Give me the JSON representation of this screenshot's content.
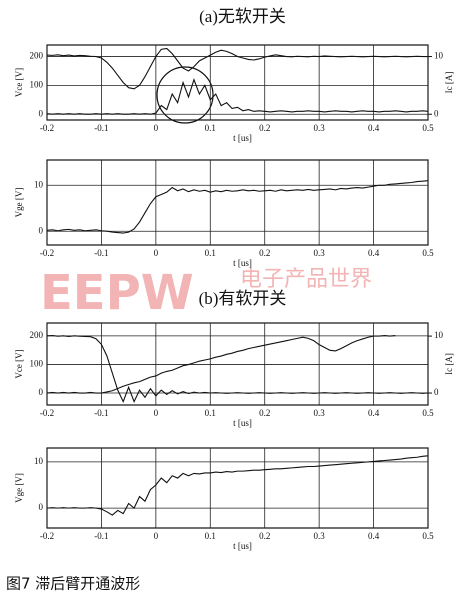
{
  "chart_data": [
    {
      "type": "line",
      "title": "(a)无软开关",
      "xlabel": "t [us]",
      "ylabel": "Vce [V]",
      "y2label": "Ic [A]",
      "grid": true,
      "x": [
        -0.2,
        -0.19,
        -0.18,
        -0.17,
        -0.16,
        -0.15,
        -0.14,
        -0.13,
        -0.12,
        -0.11,
        -0.1,
        -0.09,
        -0.08,
        -0.07,
        -0.06,
        -0.05,
        -0.04,
        -0.03,
        -0.02,
        -0.01,
        0,
        0.01,
        0.02,
        0.03,
        0.04,
        0.05,
        0.06,
        0.07,
        0.08,
        0.09,
        0.1,
        0.11,
        0.12,
        0.13,
        0.14,
        0.15,
        0.16,
        0.17,
        0.18,
        0.19,
        0.2,
        0.21,
        0.22,
        0.23,
        0.24,
        0.25,
        0.26,
        0.27,
        0.28,
        0.29,
        0.3,
        0.31,
        0.32,
        0.33,
        0.34,
        0.35,
        0.36,
        0.37,
        0.38,
        0.39,
        0.4,
        0.41,
        0.42,
        0.43,
        0.44,
        0.45,
        0.46,
        0.47,
        0.48,
        0.49,
        0.5
      ],
      "xlim": [
        -0.2,
        0.5
      ],
      "xticks": [
        -0.2,
        -0.1,
        0,
        0.1,
        0.2,
        0.3,
        0.4,
        0.5
      ],
      "ylim": [
        -20,
        240
      ],
      "yticks": [
        0,
        100,
        200
      ],
      "y2lim": [
        -1,
        12
      ],
      "y2ticks": [
        0,
        10
      ],
      "series": [
        {
          "name": "Vce",
          "color": "#111111",
          "values": [
            205,
            204,
            206,
            203,
            205,
            202,
            204,
            203,
            201,
            200,
            195,
            180,
            160,
            135,
            110,
            92,
            88,
            100,
            130,
            165,
            200,
            225,
            228,
            210,
            185,
            160,
            150,
            165,
            185,
            195,
            205,
            215,
            222,
            218,
            210,
            200,
            195,
            190,
            188,
            192,
            198,
            202,
            206,
            203,
            200,
            199,
            201,
            200,
            199,
            201,
            200,
            202,
            201,
            200,
            199,
            200,
            201,
            200,
            199,
            200,
            201,
            200,
            199,
            200,
            201,
            200,
            199,
            200,
            201,
            200,
            200
          ]
        },
        {
          "name": "Ic",
          "color": "#111111",
          "axis": "y2",
          "values": [
            0.1,
            0,
            0.1,
            0,
            0.1,
            0,
            0.1,
            0,
            0,
            0.1,
            0,
            0.1,
            0,
            0.1,
            0,
            0,
            0.1,
            0,
            0.1,
            0,
            0.2,
            1.5,
            0.8,
            3.5,
            2,
            5.5,
            3,
            6,
            3.5,
            5,
            2.5,
            3.5,
            1.5,
            2,
            1,
            1.2,
            0.6,
            0.8,
            0.5,
            0.6,
            0.5,
            0.4,
            0.5,
            0.6,
            0.5,
            0.4,
            0.5,
            0.5,
            0.6,
            0.5,
            0.5,
            0.4,
            0.5,
            0.6,
            0.5,
            0.5,
            0.4,
            0.5,
            0.6,
            0.5,
            0.5,
            0.4,
            0.5,
            0.5,
            0.6,
            0.5,
            0.4,
            0.5,
            0.5,
            0.6,
            0.5
          ]
        }
      ]
    },
    {
      "type": "line",
      "xlabel": "t [us]",
      "ylabel": "Vge [V]",
      "grid": true,
      "x": [
        -0.2,
        -0.19,
        -0.18,
        -0.17,
        -0.16,
        -0.15,
        -0.14,
        -0.13,
        -0.12,
        -0.11,
        -0.1,
        -0.09,
        -0.08,
        -0.07,
        -0.06,
        -0.05,
        -0.04,
        -0.03,
        -0.02,
        -0.01,
        0,
        0.01,
        0.02,
        0.03,
        0.04,
        0.05,
        0.06,
        0.07,
        0.08,
        0.09,
        0.1,
        0.11,
        0.12,
        0.13,
        0.14,
        0.15,
        0.16,
        0.17,
        0.18,
        0.19,
        0.2,
        0.21,
        0.22,
        0.23,
        0.24,
        0.25,
        0.26,
        0.27,
        0.28,
        0.29,
        0.3,
        0.31,
        0.32,
        0.33,
        0.34,
        0.35,
        0.36,
        0.37,
        0.38,
        0.39,
        0.4,
        0.41,
        0.42,
        0.43,
        0.44,
        0.45,
        0.46,
        0.47,
        0.48,
        0.49,
        0.5
      ],
      "xlim": [
        -0.2,
        0.5
      ],
      "xticks": [
        -0.2,
        -0.1,
        0,
        0.1,
        0.2,
        0.3,
        0.4,
        0.5
      ],
      "ylim": [
        -3,
        15.5
      ],
      "yticks": [
        0,
        10
      ],
      "series": [
        {
          "name": "Vge",
          "color": "#111111",
          "values": [
            0.2,
            0.3,
            0.1,
            0.3,
            0.4,
            0.2,
            0.3,
            0.1,
            0.2,
            0.3,
            0.1,
            0,
            -0.2,
            -0.3,
            -0.4,
            -0.2,
            0.5,
            2,
            4,
            6,
            7.5,
            8,
            8.5,
            9.5,
            8.8,
            9.2,
            8.6,
            9,
            8.7,
            8.9,
            8.5,
            8.8,
            8.6,
            8.9,
            8.7,
            8.8,
            9,
            8.8,
            8.9,
            8.7,
            8.8,
            8.9,
            8.7,
            9,
            8.8,
            8.9,
            9,
            8.9,
            9.1,
            8.9,
            9,
            9.1,
            9.2,
            9,
            9.3,
            9.2,
            9.4,
            9.5,
            9.4,
            9.6,
            9.8,
            10,
            10,
            10.2,
            10.3,
            10.4,
            10.5,
            10.6,
            10.8,
            10.9,
            11
          ]
        }
      ]
    },
    {
      "type": "line",
      "title": "(b)有软开关",
      "xlabel": "t [us]",
      "ylabel": "Vce [V]",
      "y2label": "Ic [A]",
      "grid": true,
      "x": [
        -0.2,
        -0.19,
        -0.18,
        -0.17,
        -0.16,
        -0.15,
        -0.14,
        -0.13,
        -0.12,
        -0.11,
        -0.1,
        -0.09,
        -0.08,
        -0.07,
        -0.06,
        -0.05,
        -0.04,
        -0.03,
        -0.02,
        -0.01,
        0,
        0.01,
        0.02,
        0.03,
        0.04,
        0.05,
        0.06,
        0.07,
        0.08,
        0.09,
        0.1,
        0.11,
        0.12,
        0.13,
        0.14,
        0.15,
        0.16,
        0.17,
        0.18,
        0.19,
        0.2,
        0.21,
        0.22,
        0.23,
        0.24,
        0.25,
        0.26,
        0.27,
        0.28,
        0.29,
        0.3,
        0.31,
        0.32,
        0.33,
        0.34,
        0.35,
        0.36,
        0.37,
        0.38,
        0.39,
        0.4,
        0.41,
        0.42,
        0.43,
        0.44,
        0.45,
        0.46,
        0.47,
        0.48,
        0.49,
        0.5
      ],
      "xlim": [
        -0.2,
        0.5
      ],
      "xticks": [
        -0.2,
        -0.1,
        0,
        0.1,
        0.2,
        0.3,
        0.4,
        0.5
      ],
      "ylim": [
        -42,
        245
      ],
      "yticks": [
        0,
        100,
        200
      ],
      "y2lim": [
        -2.1,
        12.3
      ],
      "y2ticks": [
        0,
        10
      ],
      "series": [
        {
          "name": "Vce",
          "color": "#111111",
          "values": [
            200,
            201,
            199,
            200,
            198,
            200,
            199,
            198,
            197,
            190,
            170,
            130,
            70,
            10,
            -30,
            20,
            -30,
            10,
            -15,
            15,
            -10,
            10,
            -5,
            8,
            -3,
            5,
            -2,
            3,
            0,
            2,
            0,
            1,
            0,
            -1,
            0,
            1,
            0,
            -1,
            0,
            1,
            0,
            -1,
            0,
            1,
            0,
            -1,
            0,
            1,
            0,
            -1,
            0,
            1,
            0,
            -1,
            0,
            1,
            0,
            -1,
            0,
            1,
            0,
            -1,
            0,
            1,
            0,
            -1,
            0,
            1,
            0,
            -1,
            0
          ]
        },
        {
          "name": "Ic",
          "color": "#111111",
          "axis": "y2",
          "values": [
            0,
            0.1,
            0,
            0.1,
            0,
            0.1,
            0,
            0,
            0.1,
            0,
            0,
            0.2,
            0.4,
            0.8,
            1.2,
            1.5,
            1.8,
            2,
            2.4,
            2.8,
            3,
            3.5,
            3.8,
            4,
            4.4,
            4.8,
            5,
            5.3,
            5.6,
            5.8,
            6,
            6.3,
            6.5,
            6.8,
            7,
            7.3,
            7.5,
            7.8,
            8,
            8.2,
            8.4,
            8.6,
            8.8,
            9,
            9.2,
            9.4,
            9.6,
            9.8,
            9.6,
            9.2,
            8.5,
            8,
            7.5,
            7.4,
            7.8,
            8.3,
            8.8,
            9.2,
            9.5,
            9.8,
            10,
            10,
            10.1,
            10,
            10.1,
            null,
            null,
            null,
            null,
            null,
            null
          ]
        }
      ]
    },
    {
      "type": "line",
      "xlabel": "t [us]",
      "ylabel": "Vge [V]",
      "grid": true,
      "x": [
        -0.2,
        -0.19,
        -0.18,
        -0.17,
        -0.16,
        -0.15,
        -0.14,
        -0.13,
        -0.12,
        -0.11,
        -0.1,
        -0.09,
        -0.08,
        -0.07,
        -0.06,
        -0.05,
        -0.04,
        -0.03,
        -0.02,
        -0.01,
        0,
        0.01,
        0.02,
        0.03,
        0.04,
        0.05,
        0.06,
        0.07,
        0.08,
        0.09,
        0.1,
        0.11,
        0.12,
        0.13,
        0.14,
        0.15,
        0.16,
        0.17,
        0.18,
        0.19,
        0.2,
        0.21,
        0.22,
        0.23,
        0.24,
        0.25,
        0.26,
        0.27,
        0.28,
        0.29,
        0.3,
        0.31,
        0.32,
        0.33,
        0.34,
        0.35,
        0.36,
        0.37,
        0.38,
        0.39,
        0.4,
        0.41,
        0.42,
        0.43,
        0.44,
        0.45,
        0.46,
        0.47,
        0.48,
        0.49,
        0.5
      ],
      "xlim": [
        -0.2,
        0.5
      ],
      "xticks": [
        -0.2,
        -0.1,
        0,
        0.1,
        0.2,
        0.3,
        0.4,
        0.5
      ],
      "ylim": [
        -4.3,
        13
      ],
      "yticks": [
        0,
        10
      ],
      "series": [
        {
          "name": "Vge",
          "color": "#111111",
          "values": [
            0,
            0.1,
            0,
            0.1,
            0,
            0.1,
            0,
            0,
            0.1,
            0,
            -0.2,
            -0.8,
            -1.5,
            -0.5,
            -1.2,
            1,
            0,
            2.5,
            1.5,
            4,
            5,
            6.5,
            5.5,
            7,
            6.5,
            7.5,
            7,
            7.5,
            7.4,
            7.6,
            7.6,
            7.8,
            7.7,
            7.9,
            7.8,
            8,
            8,
            8.1,
            8.2,
            8.2,
            8.3,
            8.4,
            8.5,
            8.5,
            8.6,
            8.7,
            8.8,
            8.9,
            9,
            9,
            9.1,
            9.2,
            9.3,
            9.4,
            9.5,
            9.6,
            9.7,
            9.8,
            9.9,
            10,
            10.1,
            10.2,
            10.3,
            10.4,
            10.5,
            10.6,
            10.8,
            10.9,
            11,
            11.2,
            11.3
          ]
        }
      ]
    }
  ],
  "watermark": [
    "EEPW",
    "电子产品世界"
  ],
  "caption": "图7  滞后臂开通波形"
}
